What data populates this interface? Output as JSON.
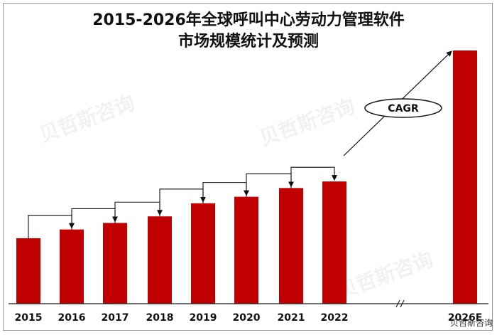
{
  "chart_data": {
    "type": "bar",
    "title_lines": [
      "2015-2026年全球呼叫中心劳动力管理软件",
      "市场规模统计及预测"
    ],
    "categories": [
      "2015",
      "2016",
      "2017",
      "2018",
      "2019",
      "2020",
      "2021",
      "2022",
      "2026E"
    ],
    "values": [
      30,
      34,
      37,
      40,
      46,
      49,
      53,
      56,
      116
    ],
    "ylim": [
      0,
      116
    ],
    "annotation": "CAGR",
    "axis_break": true,
    "grid": false,
    "legend": "none",
    "bar_color": "#c00000"
  },
  "watermark_credit": "贝哲斯咨询"
}
